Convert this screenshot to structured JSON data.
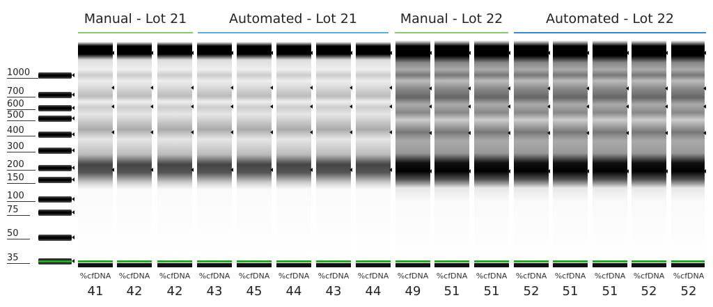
{
  "groups": [
    {
      "title": "Manual - Lot 21",
      "color": "#8cc870"
    },
    {
      "title": "Automated - Lot 21",
      "color": "#5aaee0"
    },
    {
      "title": "Manual - Lot 22",
      "color": "#8cc870"
    },
    {
      "title": "Automated - Lot 22",
      "color": "#3a86c8"
    }
  ],
  "ladder": [
    "1000",
    "700",
    "600",
    "500",
    "400",
    "300",
    "200",
    "150",
    "100",
    "75",
    "50",
    "35"
  ],
  "lanes": [
    {
      "caption": "%cfDNA",
      "value": "41"
    },
    {
      "caption": "%cfDNA",
      "value": "42"
    },
    {
      "caption": "%cfDNA",
      "value": "42"
    },
    {
      "caption": "%cfDNA",
      "value": "43"
    },
    {
      "caption": "%cfDNA",
      "value": "45"
    },
    {
      "caption": "%cfDNA",
      "value": "44"
    },
    {
      "caption": "%cfDNA",
      "value": "43"
    },
    {
      "caption": "%cfDNA",
      "value": "44"
    },
    {
      "caption": "%cfDNA",
      "value": "49"
    },
    {
      "caption": "%cfDNA",
      "value": "51"
    },
    {
      "caption": "%cfDNA",
      "value": "51"
    },
    {
      "caption": "%cfDNA",
      "value": "52"
    },
    {
      "caption": "%cfDNA",
      "value": "51"
    },
    {
      "caption": "%cfDNA",
      "value": "51"
    },
    {
      "caption": "%cfDNA",
      "value": "52"
    },
    {
      "caption": "%cfDNA",
      "value": "52"
    }
  ]
}
